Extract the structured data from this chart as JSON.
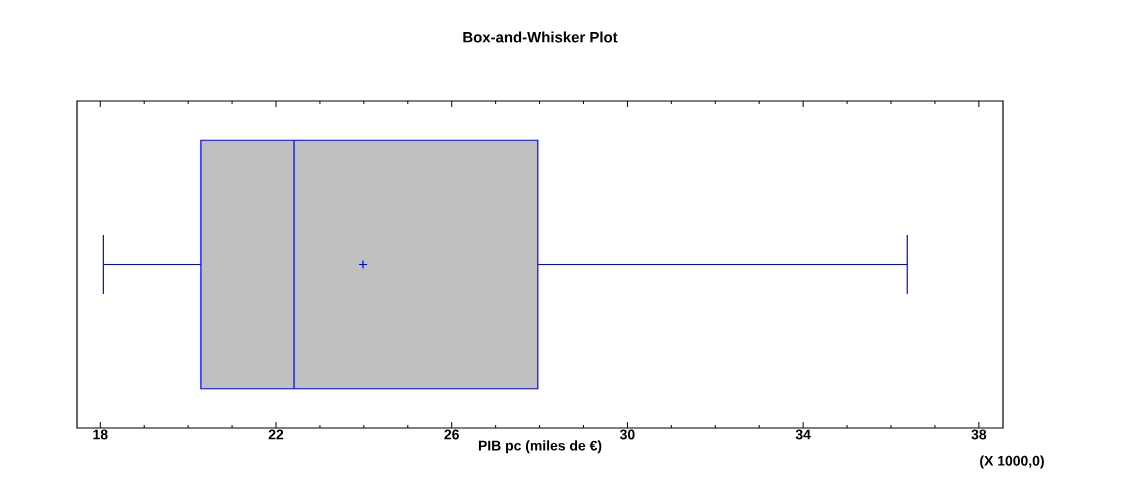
{
  "chart_data": {
    "type": "box",
    "title": "Box-and-Whisker Plot",
    "xlabel": "PIB pc (miles de €)",
    "annotations": [
      "(X 1000,0)"
    ],
    "orientation": "horizontal",
    "categories": [
      null
    ],
    "color": "#0000ff",
    "boxes": [
      {
        "low": 18.07,
        "q1": 20.29,
        "median": 22.41,
        "q3": 27.96,
        "high": 36.37,
        "mean": 23.98
      }
    ],
    "xlim": [
      17.47,
      38.55
    ],
    "xticks": [
      18,
      22,
      26,
      30,
      34,
      38
    ]
  }
}
